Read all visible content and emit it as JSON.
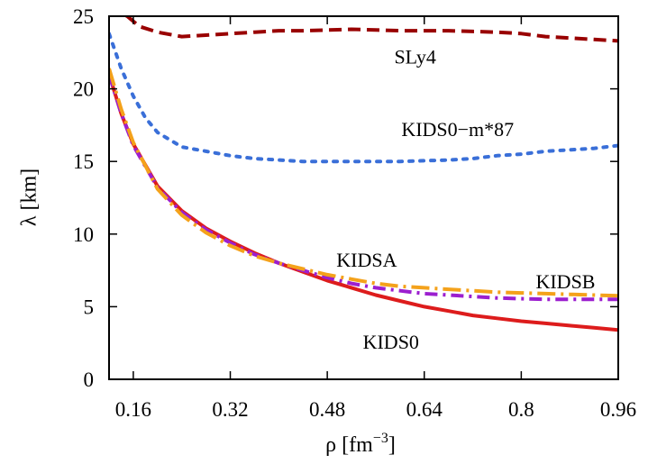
{
  "chart_data": {
    "type": "line",
    "xlabel": "ρ [fm",
    "xlabel_sup": "−3",
    "xlabel_end": "]",
    "ylabel": "λ [km]",
    "xlim": [
      0.12,
      0.96
    ],
    "ylim": [
      0,
      25
    ],
    "xticks": [
      0.16,
      0.32,
      0.48,
      0.64,
      0.8,
      0.96
    ],
    "xtick_labels": [
      "0.16",
      "0.32",
      "0.48",
      "0.64",
      "0.8",
      "0.96"
    ],
    "yticks": [
      0,
      5,
      10,
      15,
      20,
      25
    ],
    "ytick_labels": [
      "0",
      "5",
      "10",
      "15",
      "20",
      "25"
    ],
    "grid": false,
    "series": [
      {
        "name": "SLy4",
        "color": "#990000",
        "dash": "dash",
        "x": [
          0.12,
          0.15,
          0.17,
          0.2,
          0.24,
          0.28,
          0.32,
          0.36,
          0.4,
          0.44,
          0.48,
          0.52,
          0.56,
          0.6,
          0.64,
          0.68,
          0.72,
          0.76,
          0.8,
          0.84,
          0.88,
          0.92,
          0.96
        ],
        "y": [
          25.6,
          25.0,
          24.3,
          23.9,
          23.6,
          23.7,
          23.8,
          23.9,
          24.0,
          24.0,
          24.05,
          24.1,
          24.05,
          24.0,
          24.0,
          24.0,
          23.95,
          23.9,
          23.8,
          23.6,
          23.5,
          23.4,
          23.3
        ]
      },
      {
        "name": "KIDS0−m*87",
        "color": "#3a6fd8",
        "dash": "dot",
        "x": [
          0.12,
          0.14,
          0.16,
          0.18,
          0.2,
          0.24,
          0.28,
          0.32,
          0.36,
          0.4,
          0.44,
          0.48,
          0.52,
          0.56,
          0.6,
          0.64,
          0.68,
          0.72,
          0.76,
          0.8,
          0.84,
          0.88,
          0.92,
          0.96
        ],
        "y": [
          23.8,
          21.4,
          19.5,
          18.0,
          17.0,
          16.0,
          15.7,
          15.4,
          15.2,
          15.1,
          15.0,
          15.0,
          15.0,
          15.0,
          15.0,
          15.05,
          15.1,
          15.2,
          15.4,
          15.5,
          15.7,
          15.8,
          15.9,
          16.1
        ]
      },
      {
        "name": "KIDS0",
        "color": "#dd1c1c",
        "dash": "solid",
        "x": [
          0.12,
          0.14,
          0.16,
          0.2,
          0.24,
          0.28,
          0.32,
          0.36,
          0.4,
          0.44,
          0.48,
          0.52,
          0.56,
          0.6,
          0.64,
          0.68,
          0.72,
          0.76,
          0.8,
          0.84,
          0.88,
          0.92,
          0.96
        ],
        "y": [
          21.0,
          18.3,
          16.2,
          13.3,
          11.6,
          10.4,
          9.5,
          8.7,
          8.0,
          7.4,
          6.8,
          6.3,
          5.8,
          5.4,
          5.0,
          4.7,
          4.4,
          4.2,
          4.0,
          3.85,
          3.7,
          3.55,
          3.4
        ]
      },
      {
        "name": "KIDSA",
        "color": "#9c1fcf",
        "dash": "dashdot",
        "x": [
          0.12,
          0.14,
          0.16,
          0.2,
          0.24,
          0.28,
          0.32,
          0.36,
          0.4,
          0.44,
          0.48,
          0.52,
          0.56,
          0.6,
          0.64,
          0.68,
          0.72,
          0.76,
          0.8,
          0.84,
          0.88,
          0.92,
          0.96
        ],
        "y": [
          21.0,
          18.3,
          16.1,
          13.2,
          11.5,
          10.3,
          9.4,
          8.6,
          8.0,
          7.5,
          7.0,
          6.6,
          6.3,
          6.1,
          5.9,
          5.8,
          5.7,
          5.6,
          5.55,
          5.5,
          5.5,
          5.5,
          5.5
        ]
      },
      {
        "name": "KIDSB",
        "color": "#f4a21b",
        "dash": "longdashdot",
        "x": [
          0.12,
          0.14,
          0.16,
          0.2,
          0.24,
          0.28,
          0.32,
          0.36,
          0.4,
          0.44,
          0.48,
          0.52,
          0.56,
          0.6,
          0.64,
          0.68,
          0.72,
          0.76,
          0.8,
          0.84,
          0.88,
          0.92,
          0.96
        ],
        "y": [
          21.4,
          18.6,
          16.3,
          13.1,
          11.3,
          10.1,
          9.2,
          8.5,
          8.0,
          7.6,
          7.2,
          6.9,
          6.6,
          6.4,
          6.3,
          6.2,
          6.1,
          6.0,
          5.95,
          5.9,
          5.85,
          5.8,
          5.75
        ]
      }
    ],
    "annotations": [
      {
        "text": "SLy4",
        "x": 0.625,
        "y": 22.25,
        "series": 0
      },
      {
        "text": "KIDS0−m*87",
        "x": 0.695,
        "y": 17.25,
        "series": 1
      },
      {
        "text": "KIDSA",
        "x": 0.545,
        "y": 8.25,
        "series": 3
      },
      {
        "text": "KIDSB",
        "x": 0.873,
        "y": 6.75,
        "series": 4
      },
      {
        "text": "KIDS0",
        "x": 0.585,
        "y": 2.6,
        "series": 2
      }
    ]
  }
}
